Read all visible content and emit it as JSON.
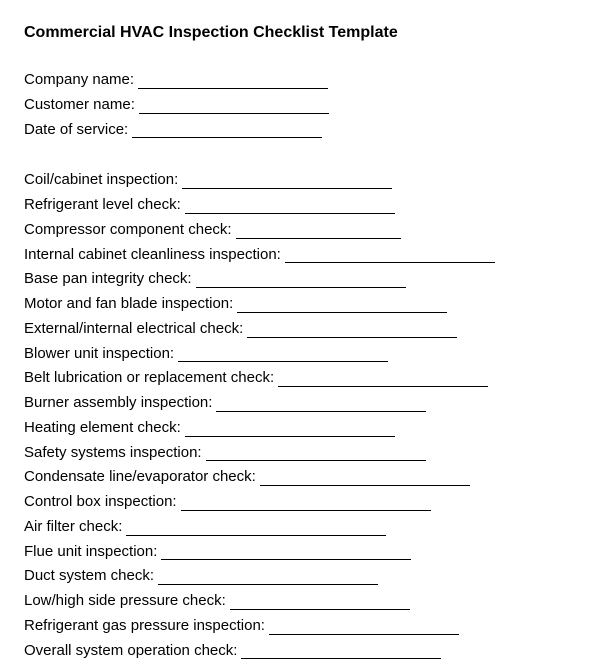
{
  "title": "Commercial HVAC Inspection Checklist Template",
  "header_fields": [
    {
      "label": "Company name:",
      "line_width": 190
    },
    {
      "label": "Customer name:",
      "line_width": 190
    },
    {
      "label": "Date of service:",
      "line_width": 190
    }
  ],
  "checklist_items": [
    {
      "label": "Coil/cabinet inspection:",
      "line_width": 210
    },
    {
      "label": "Refrigerant level check:",
      "line_width": 210
    },
    {
      "label": "Compressor component check:",
      "line_width": 165
    },
    {
      "label": "Internal cabinet cleanliness inspection:",
      "line_width": 210
    },
    {
      "label": "Base pan integrity check:",
      "line_width": 210
    },
    {
      "label": "Motor and fan blade inspection:",
      "line_width": 210
    },
    {
      "label": "External/internal electrical check:",
      "line_width": 210
    },
    {
      "label": "Blower unit inspection:",
      "line_width": 210
    },
    {
      "label": "Belt lubrication or replacement check:",
      "line_width": 210
    },
    {
      "label": "Burner assembly inspection:",
      "line_width": 210
    },
    {
      "label": "Heating element check:",
      "line_width": 210
    },
    {
      "label": "Safety systems inspection:",
      "line_width": 220
    },
    {
      "label": "Condensate line/evaporator check:",
      "line_width": 210
    },
    {
      "label": "Control box inspection:",
      "line_width": 250
    },
    {
      "label": "Air filter check:",
      "line_width": 260
    },
    {
      "label": "Flue unit inspection:",
      "line_width": 250
    },
    {
      "label": "Duct system check:",
      "line_width": 220
    },
    {
      "label": "Low/high side pressure check:",
      "line_width": 180
    },
    {
      "label": "Refrigerant gas pressure inspection:",
      "line_width": 190
    },
    {
      "label": "Overall system operation check:",
      "line_width": 200
    }
  ]
}
